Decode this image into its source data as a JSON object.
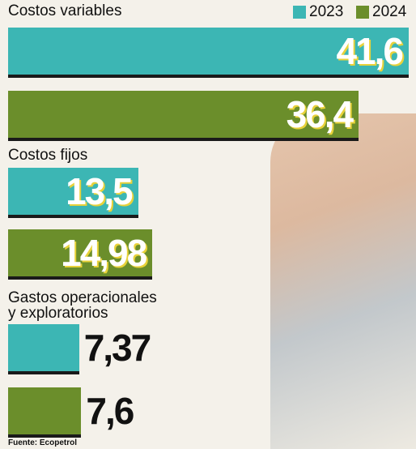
{
  "chart_data": {
    "type": "bar",
    "orientation": "horizontal",
    "categories": [
      "Costos variables",
      "Costos fijos",
      "Gastos operacionales\ny exploratorios"
    ],
    "series": [
      {
        "name": "2023",
        "color": "#3cb6b4",
        "values": [
          41.6,
          13.5,
          7.37
        ],
        "value_labels": [
          "41,6",
          "13,5",
          "7,37"
        ]
      },
      {
        "name": "2024",
        "color": "#6b8e2b",
        "values": [
          36.4,
          14.98,
          7.6
        ],
        "value_labels": [
          "36,4",
          "14,98",
          "7,6"
        ]
      }
    ],
    "source": "Fuente: Ecopetrol"
  }
}
